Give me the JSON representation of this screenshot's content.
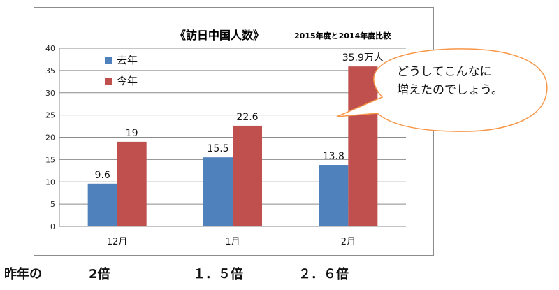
{
  "chart_data": {
    "type": "bar",
    "title": "《訪日中国人数》",
    "subtitle": "2015年度と2014年度比較",
    "categories": [
      "12月",
      "1月",
      "2月"
    ],
    "series": [
      {
        "name": "去年",
        "color": "#4f81bd",
        "values": [
          9.6,
          15.5,
          13.8
        ],
        "labels": [
          "9.6",
          "15.5",
          "13.8"
        ]
      },
      {
        "name": "今年",
        "color": "#c0504d",
        "values": [
          19,
          22.6,
          35.9
        ],
        "labels": [
          "19",
          "22.6",
          "35.9万人"
        ]
      }
    ],
    "ylim": [
      0,
      40
    ],
    "yticks": [
      0,
      5,
      10,
      15,
      20,
      25,
      30,
      35,
      40
    ],
    "grid": true,
    "legend": "top-left"
  },
  "callout": {
    "text": "どうしてこんなに\n増えたのでしょう。",
    "border_color": "#f79646"
  },
  "ratios": {
    "label": "昨年の",
    "values": [
      "2倍",
      "１．５倍",
      "２．６倍"
    ]
  }
}
